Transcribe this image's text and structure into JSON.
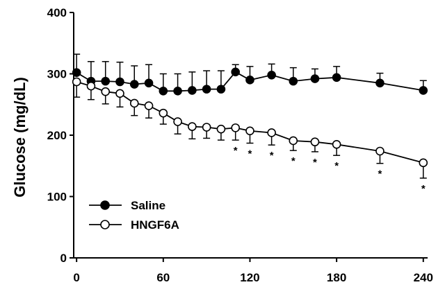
{
  "chart_data": {
    "type": "line",
    "ylabel": "Glucose (mg/dL)",
    "xlabel": "",
    "xlim": [
      -2,
      243
    ],
    "ylim": [
      0,
      400
    ],
    "x_ticks": [
      0,
      60,
      120,
      180,
      240
    ],
    "y_ticks": [
      0,
      100,
      200,
      300,
      400
    ],
    "grid": false,
    "legend_position": "bottom-left",
    "x": [
      0,
      10,
      20,
      30,
      40,
      50,
      60,
      70,
      80,
      90,
      100,
      110,
      120,
      135,
      150,
      165,
      180,
      210,
      240
    ],
    "series": [
      {
        "name": "Saline",
        "marker": "filled-circle",
        "color": "#000000",
        "values": [
          302,
          288,
          288,
          287,
          283,
          285,
          272,
          272,
          273,
          275,
          275,
          303,
          290,
          298,
          288,
          292,
          294,
          285,
          273
        ],
        "error_upper": [
          30,
          32,
          32,
          32,
          30,
          30,
          28,
          28,
          30,
          30,
          30,
          12,
          22,
          18,
          22,
          16,
          18,
          16,
          16
        ]
      },
      {
        "name": "HNGF6A",
        "marker": "open-circle",
        "color": "#000000",
        "values": [
          287,
          280,
          271,
          268,
          252,
          248,
          236,
          222,
          214,
          213,
          210,
          212,
          207,
          204,
          191,
          189,
          185,
          174,
          155
        ],
        "error_lower": [
          25,
          22,
          20,
          22,
          20,
          20,
          18,
          20,
          20,
          18,
          18,
          20,
          20,
          20,
          16,
          16,
          18,
          20,
          25
        ]
      }
    ],
    "significance": {
      "symbol": "*",
      "x": [
        110,
        120,
        135,
        150,
        165,
        180,
        210,
        240
      ]
    }
  }
}
